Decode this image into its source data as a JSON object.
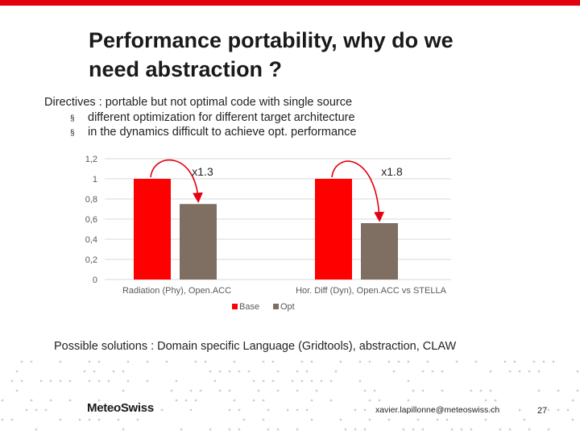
{
  "slide": {
    "title_line1": "Performance portability, why do we",
    "title_line2": "need abstraction ?",
    "intro": "Directives : portable but not optimal code with single source",
    "bullets": [
      "different optimization for different target architecture",
      "in the dynamics difficult to achieve opt. performance"
    ],
    "bullet_glyph": "§",
    "solutions": "Possible solutions : Domain specific Language (Gridtools), abstraction, CLAW",
    "footer": {
      "logo": "MeteoSwiss",
      "email": "xavier.lapillonne@meteoswiss.ch",
      "page": "27"
    },
    "colors": {
      "accent": "#e3000f"
    }
  },
  "chart_data": {
    "type": "bar",
    "categories": [
      "Radiation (Phy), Open.ACC",
      "Hor. Diff (Dyn), Open.ACC vs STELLA"
    ],
    "series": [
      {
        "name": "Base",
        "values": [
          1,
          1
        ],
        "color": "#ff0000"
      },
      {
        "name": "Opt",
        "values": [
          0.75,
          0.56
        ],
        "color": "#7f6f62"
      }
    ],
    "annotations": [
      "x1.3",
      "x1.8"
    ],
    "yticks": [
      "0",
      "0,2",
      "0,4",
      "0,6",
      "0,8",
      "1",
      "1,2"
    ],
    "ylim": [
      0,
      1.2
    ],
    "grid": true,
    "legend": "bottom",
    "xlabel": "",
    "ylabel": ""
  }
}
